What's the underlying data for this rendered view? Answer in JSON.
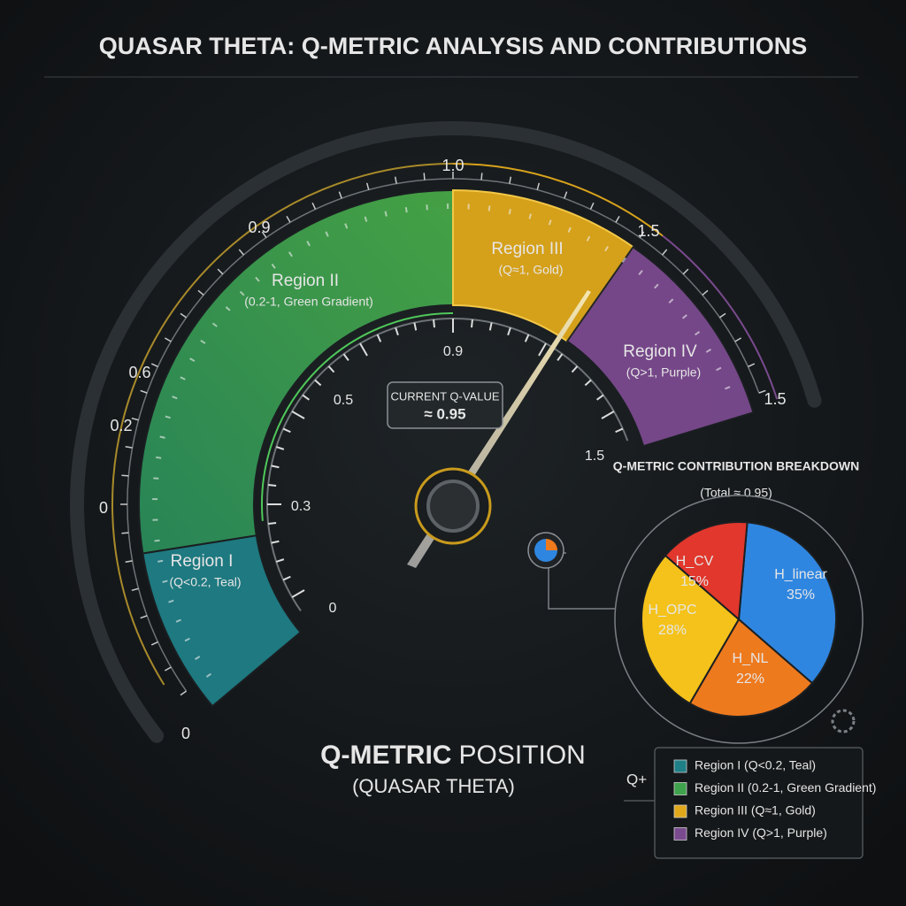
{
  "header": {
    "title": "QUASAR THETA: Q-METRIC ANALYSIS AND CONTRIBUTIONS"
  },
  "gauge": {
    "outer_labels": [
      "1.0",
      "0.9",
      "0.6",
      "0.2",
      "0",
      "0",
      "1.5",
      "1.5"
    ],
    "inner_labels": [
      "0.9",
      "0.5",
      "0.3",
      "0",
      "1.5"
    ],
    "regions": [
      {
        "name": "Region I",
        "note": "(Q<0.2, Teal)",
        "color": "#1f7f86"
      },
      {
        "name": "Region II",
        "note": "(0.2-1, Green Gradient)",
        "color": "#3fa34d"
      },
      {
        "name": "Region III",
        "note": "(Q≈1, Gold)",
        "color": "#e0a81a"
      },
      {
        "name": "Region IV",
        "note": "(Q>1, Purple)",
        "color": "#7a4a8e"
      }
    ],
    "current_label": "CURRENT Q-VALUE",
    "current_value": "≈ 0.95",
    "caption_bold": "Q-METRIC",
    "caption_rest": "POSITION",
    "caption_sub": "(QUASAR THETA)"
  },
  "pie": {
    "type": "pie",
    "title": "Q-METRIC CONTRIBUTION BREAKDOWN",
    "subtitle": "(Total ≈ 0.95)",
    "categories": [
      "H_linear",
      "H_NL",
      "H_OPC",
      "H_CV"
    ],
    "values": [
      35,
      22,
      28,
      15
    ],
    "value_labels": [
      "35%",
      "22%",
      "28%",
      "15%"
    ],
    "colors": [
      "#2f86e0",
      "#ee7a1e",
      "#f4c21a",
      "#e2372c"
    ]
  },
  "legend": {
    "items": [
      "Region I (Q<0.2, Teal)",
      "Region II (0.2-1, Green Gradient)",
      "Region III (Q≈1, Gold)",
      "Region IV (Q>1, Purple)"
    ],
    "side_mark": "Q+"
  }
}
